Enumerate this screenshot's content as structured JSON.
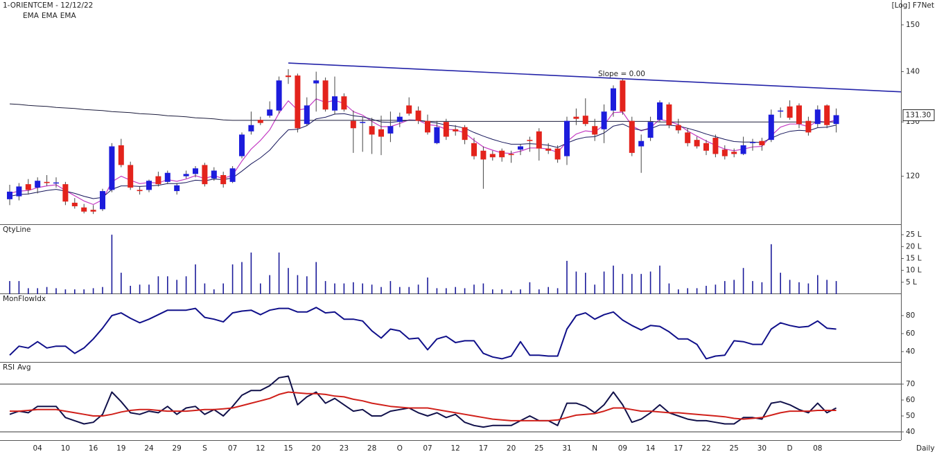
{
  "chart_data": [
    {
      "type": "candlestick",
      "title": "1-ORIENTCEM - 12/12/22",
      "scale_label": "[Log] F7Net",
      "log_scale": true,
      "ylim": [
        111.8,
        155.6
      ],
      "yticks": [
        120,
        130,
        140,
        150
      ],
      "up_color": "#1c1cdc",
      "down_color": "#e3231c",
      "open": [
        116.0,
        116.5,
        118.6,
        118.0,
        119.0,
        118.8,
        118.6,
        115.4,
        114.6,
        114.2,
        114.3,
        117.6,
        125.6,
        122.0,
        117.6,
        117.6,
        120.0,
        119.0,
        117.4,
        120.0,
        120.4,
        122.0,
        119.6,
        120.2,
        119.0,
        123.6,
        128.2,
        130.4,
        131.2,
        132.2,
        139.2,
        139.2,
        129.6,
        137.6,
        138.2,
        132.2,
        135.0,
        130.2,
        129.8,
        129.2,
        128.6,
        127.8,
        130.0,
        133.2,
        132.2,
        130.2,
        126.0,
        130.0,
        128.6,
        129.0,
        126.0,
        124.6,
        124.0,
        124.6,
        124.0,
        124.8,
        126.6,
        128.2,
        125.0,
        125.0,
        123.6,
        131.0,
        131.2,
        129.2,
        128.6,
        132.2,
        138.2,
        130.2,
        125.4,
        127.0,
        130.4,
        133.4,
        129.4,
        128.0,
        126.6,
        126.0,
        127.0,
        124.8,
        124.4,
        124.0,
        126.2,
        126.4,
        126.6,
        132.0,
        133.0,
        133.2,
        130.2,
        129.6,
        133.2,
        129.6
      ],
      "high": [
        118.5,
        118.8,
        119.5,
        119.8,
        120.2,
        119.8,
        119.0,
        116.2,
        115.2,
        115.0,
        117.8,
        126.0,
        126.8,
        122.6,
        118.2,
        119.4,
        120.8,
        121.0,
        118.8,
        121.0,
        121.8,
        122.4,
        121.6,
        120.8,
        121.8,
        128.0,
        132.0,
        131.0,
        134.0,
        139.0,
        140.5,
        139.6,
        134.8,
        140.0,
        138.8,
        139.0,
        135.6,
        132.2,
        131.0,
        130.8,
        131.2,
        132.0,
        131.8,
        134.8,
        133.0,
        131.4,
        130.2,
        130.6,
        129.4,
        129.4,
        127.0,
        125.4,
        124.6,
        125.0,
        124.6,
        125.8,
        127.2,
        128.8,
        126.0,
        125.6,
        131.0,
        132.6,
        134.6,
        130.6,
        133.4,
        137.2,
        138.6,
        131.0,
        127.6,
        131.0,
        134.2,
        133.8,
        130.6,
        128.8,
        127.2,
        126.6,
        127.6,
        125.6,
        125.0,
        127.2,
        126.8,
        127.0,
        132.4,
        132.8,
        134.2,
        133.6,
        131.0,
        133.2,
        133.4,
        132.6
      ],
      "low": [
        115.0,
        115.8,
        116.8,
        117.0,
        118.3,
        118.0,
        115.0,
        114.4,
        113.6,
        113.5,
        114.0,
        117.2,
        121.6,
        117.6,
        116.8,
        117.2,
        118.2,
        118.6,
        116.8,
        119.6,
        119.8,
        118.2,
        119.2,
        118.0,
        118.8,
        123.2,
        127.6,
        129.4,
        130.8,
        131.6,
        137.5,
        128.0,
        129.2,
        132.0,
        132.0,
        131.4,
        132.0,
        124.2,
        124.4,
        124.0,
        123.8,
        126.2,
        129.0,
        131.2,
        129.6,
        127.6,
        125.8,
        126.6,
        127.4,
        125.8,
        123.0,
        117.8,
        122.8,
        122.6,
        122.4,
        123.8,
        124.4,
        122.8,
        124.0,
        122.4,
        122.0,
        129.4,
        129.2,
        126.4,
        126.0,
        131.0,
        131.4,
        123.6,
        120.6,
        126.4,
        130.0,
        128.8,
        127.8,
        125.4,
        125.0,
        123.8,
        123.4,
        123.0,
        123.4,
        123.8,
        124.6,
        124.6,
        126.2,
        130.8,
        130.4,
        128.8,
        127.4,
        129.0,
        128.8,
        128.0
      ],
      "close": [
        117.3,
        118.2,
        117.6,
        119.2,
        118.8,
        118.9,
        115.6,
        114.8,
        113.9,
        113.9,
        117.4,
        125.4,
        122.0,
        118.0,
        117.4,
        119.2,
        118.6,
        120.6,
        118.4,
        120.4,
        121.4,
        118.6,
        121.0,
        118.6,
        121.4,
        127.6,
        129.4,
        129.8,
        132.4,
        138.2,
        138.9,
        128.8,
        133.2,
        138.2,
        132.4,
        135.0,
        132.4,
        128.8,
        130.0,
        127.6,
        127.2,
        129.2,
        131.0,
        131.6,
        130.2,
        128.0,
        129.0,
        127.2,
        128.2,
        126.6,
        123.6,
        123.0,
        123.4,
        123.4,
        123.8,
        125.4,
        126.4,
        125.0,
        124.6,
        123.0,
        130.2,
        130.6,
        129.6,
        127.6,
        132.0,
        136.6,
        132.0,
        124.2,
        126.4,
        130.0,
        133.8,
        129.4,
        128.4,
        126.0,
        125.4,
        124.6,
        124.0,
        123.6,
        124.0,
        125.6,
        126.2,
        125.6,
        131.4,
        132.2,
        130.8,
        129.6,
        128.0,
        132.4,
        129.4,
        131.3
      ],
      "last_label": "131.30",
      "series": [
        {
          "name": "EMA",
          "color": "#c43bc4",
          "values": [
            117.0,
            117.4,
            117.5,
            118.0,
            118.3,
            118.5,
            117.5,
            116.6,
            115.7,
            115.1,
            115.9,
            119.0,
            120.0,
            119.3,
            118.7,
            118.9,
            118.8,
            119.4,
            119.1,
            119.5,
            120.1,
            119.6,
            120.1,
            119.6,
            120.2,
            122.7,
            124.9,
            126.5,
            128.5,
            131.7,
            134.1,
            132.3,
            132.6,
            134.5,
            133.8,
            134.2,
            133.6,
            132.0,
            131.3,
            130.1,
            129.1,
            129.1,
            129.7,
            130.4,
            130.3,
            129.5,
            129.3,
            128.6,
            128.5,
            127.9,
            126.5,
            125.3,
            124.7,
            124.2,
            124.1,
            124.5,
            125.1,
            125.1,
            124.9,
            124.3,
            126.3,
            127.7,
            128.3,
            128.1,
            129.4,
            131.8,
            131.9,
            129.3,
            128.3,
            128.9,
            130.5,
            130.1,
            129.5,
            128.3,
            127.3,
            126.4,
            125.6,
            124.9,
            124.6,
            124.9,
            125.3,
            125.4,
            127.4,
            129.0,
            129.6,
            129.6,
            129.1,
            130.2,
            129.9,
            130.4
          ]
        },
        {
          "name": "EMA",
          "color": "#14145a",
          "values": [
            116.5,
            116.8,
            116.9,
            117.2,
            117.5,
            117.7,
            117.4,
            117.0,
            116.5,
            116.1,
            116.3,
            117.7,
            118.3,
            118.3,
            118.2,
            118.3,
            118.4,
            118.7,
            118.7,
            118.9,
            119.3,
            119.2,
            119.5,
            119.4,
            119.7,
            120.9,
            122.2,
            123.3,
            124.7,
            126.7,
            128.5,
            128.6,
            129.3,
            130.6,
            130.9,
            131.5,
            131.6,
            131.2,
            131.0,
            130.5,
            130.0,
            129.9,
            130.1,
            130.3,
            130.3,
            130.0,
            129.8,
            129.4,
            129.2,
            128.8,
            128.0,
            127.3,
            126.7,
            126.2,
            125.8,
            125.8,
            125.9,
            125.8,
            125.6,
            125.2,
            126.0,
            126.7,
            127.1,
            127.2,
            127.9,
            129.2,
            129.6,
            128.8,
            128.4,
            128.7,
            129.4,
            129.4,
            129.2,
            128.8,
            128.3,
            127.7,
            127.2,
            126.7,
            126.3,
            126.2,
            126.2,
            126.1,
            126.9,
            127.7,
            128.2,
            128.4,
            128.3,
            128.9,
            129.0,
            129.4
          ]
        },
        {
          "name": "EMA",
          "color": "#1a1a3a",
          "values": [
            133.5,
            133.4,
            133.2,
            133.1,
            133.0,
            132.8,
            132.7,
            132.6,
            132.4,
            132.3,
            132.2,
            132.0,
            131.9,
            131.8,
            131.6,
            131.5,
            131.4,
            131.2,
            131.1,
            131.0,
            130.8,
            130.7,
            130.6,
            130.4,
            130.3,
            130.3,
            130.3,
            130.3,
            130.3,
            130.3,
            130.3,
            130.3,
            130.3,
            130.3,
            130.3,
            130.3,
            130.3,
            130.3,
            130.3,
            130.3,
            130.3,
            130.3,
            130.3,
            130.3,
            130.3,
            130.1,
            130.1,
            130.1,
            130.1,
            130.1,
            130.1,
            130.1,
            130.1,
            130.1,
            130.1,
            130.1,
            130.1,
            130.1,
            130.1,
            130.1,
            130.1,
            130.1,
            130.1,
            130.1,
            130.1,
            130.1,
            130.1,
            130.1,
            130.1,
            130.1,
            130.0,
            130.0,
            130.0,
            130.0,
            130.0,
            130.0,
            130.0,
            130.0,
            130.0,
            130.0,
            130.0,
            130.0,
            130.0,
            130.0,
            130.0,
            130.0,
            130.0,
            130.0,
            130.0,
            130.0
          ]
        }
      ],
      "trendline": {
        "label": "Slope = 0.00",
        "color": "#2323a8",
        "values": [
          141.8,
          135.9
        ]
      }
    },
    {
      "type": "bar",
      "title": "QtyLine",
      "color": "#1a1a9a",
      "ylim": [
        0,
        29.4
      ],
      "yticks": [
        {
          "value": 5,
          "label": "5 L"
        },
        {
          "value": 10,
          "label": "10 L"
        },
        {
          "value": 15,
          "label": "15 L"
        },
        {
          "value": 20,
          "label": "20 L"
        },
        {
          "value": 25,
          "label": "25 L"
        }
      ],
      "values": [
        5.5,
        5.5,
        2.5,
        2.5,
        3,
        2.5,
        2,
        2,
        2,
        2.5,
        3,
        25,
        9,
        3.5,
        4,
        4,
        7.5,
        7.5,
        6,
        7.5,
        12.5,
        4.5,
        2,
        4.5,
        12.5,
        13.5,
        17.5,
        4.5,
        8,
        17.5,
        11,
        8,
        7.5,
        13.5,
        5.5,
        4.5,
        4.5,
        5,
        4.5,
        4,
        3,
        5.5,
        3,
        3,
        4,
        7,
        2.5,
        2.5,
        3,
        2.5,
        4,
        4.5,
        2,
        2,
        1.5,
        2,
        5,
        2,
        3,
        2.5,
        14,
        9.5,
        9,
        4,
        9.5,
        12,
        8.5,
        8.5,
        8.5,
        9.5,
        12,
        4.5,
        2,
        2.5,
        2.5,
        3.5,
        4,
        5.5,
        6,
        11,
        5.5,
        5,
        21,
        9,
        6,
        5,
        4.5,
        8,
        6,
        5.5
      ]
    },
    {
      "type": "line",
      "title": "MonFlowIdx",
      "color": "#10108a",
      "ylim": [
        28.5,
        104.6
      ],
      "yticks": [
        40,
        60,
        80
      ],
      "values": [
        36,
        46,
        44,
        51,
        44,
        46,
        46,
        38,
        44,
        54,
        66,
        80,
        83,
        77,
        72,
        76,
        81,
        86,
        86,
        86,
        88,
        78,
        76,
        73,
        83,
        85,
        86,
        81,
        86,
        88,
        88,
        84,
        84,
        89,
        83,
        84,
        76,
        76,
        74,
        63,
        55,
        65,
        63,
        54,
        55,
        42,
        54,
        57,
        50,
        52,
        52,
        38,
        34,
        32,
        35,
        51,
        36,
        36,
        35,
        35,
        65,
        80,
        83,
        76,
        81,
        84,
        75,
        69,
        64,
        69,
        68,
        62,
        54,
        54,
        48,
        32,
        35,
        36,
        52,
        51,
        48,
        48,
        65,
        72,
        69,
        67,
        68,
        74,
        66,
        65
      ]
    },
    {
      "type": "line",
      "ylim": [
        34.8,
        83.9
      ],
      "yticks": [
        40,
        50,
        60,
        70
      ],
      "hlines": [
        40,
        70
      ],
      "xlabel": "Daily",
      "categories": [
        null,
        null,
        null,
        "04",
        null,
        null,
        "10",
        null,
        null,
        "16",
        null,
        null,
        "19",
        null,
        null,
        "24",
        null,
        null,
        "29",
        null,
        null,
        "S",
        null,
        null,
        "07",
        null,
        null,
        "12",
        null,
        null,
        "15",
        null,
        null,
        "20",
        null,
        null,
        "23",
        null,
        null,
        "28",
        null,
        null,
        "O",
        null,
        null,
        "07",
        null,
        null,
        "12",
        null,
        null,
        "17",
        null,
        null,
        "20",
        null,
        null,
        "25",
        null,
        null,
        "31",
        null,
        null,
        "N",
        null,
        null,
        "09",
        null,
        null,
        "14",
        null,
        null,
        "17",
        null,
        null,
        "22",
        null,
        null,
        "25",
        null,
        null,
        "30",
        null,
        null,
        "D",
        null,
        null,
        "08",
        null,
        null
      ],
      "series": [
        {
          "name": "RSI",
          "color": "#10104a",
          "values": [
            51,
            53,
            52,
            56,
            56,
            56,
            49,
            47,
            45,
            46,
            51,
            65,
            59,
            52,
            51,
            53,
            52,
            56,
            51,
            55,
            56,
            51,
            54,
            50,
            56,
            63,
            66,
            66,
            69,
            74,
            75,
            57,
            62,
            65,
            58,
            61,
            57,
            53,
            54,
            50,
            50,
            53,
            54,
            55,
            52,
            50,
            52,
            49,
            51,
            46,
            44,
            43,
            44,
            44,
            44,
            47,
            50,
            47,
            47,
            44,
            58,
            58,
            56,
            52,
            57,
            65,
            57,
            46,
            48,
            52,
            57,
            52,
            50,
            48,
            47,
            47,
            46,
            45,
            45,
            49,
            49,
            48,
            58,
            59,
            57,
            54,
            52,
            58,
            52,
            55
          ]
        },
        {
          "name": "Avg",
          "color": "#d0201a",
          "values": [
            53,
            53,
            53.5,
            54,
            54,
            54,
            53,
            52,
            51,
            50,
            50,
            51,
            52.5,
            53.5,
            54,
            54,
            53.5,
            53,
            53,
            53,
            53.5,
            54,
            54,
            54.5,
            55,
            56.5,
            58,
            59.5,
            61,
            63.5,
            65,
            64.5,
            64,
            64,
            63.5,
            62.5,
            62,
            60.5,
            59.5,
            58,
            57,
            56,
            55.5,
            55,
            55,
            55,
            54,
            53,
            52,
            51,
            50,
            49,
            48,
            47.5,
            47,
            47,
            47,
            47,
            47,
            47.5,
            49,
            50.5,
            51,
            51.5,
            53,
            55,
            55,
            54,
            53,
            53,
            52.5,
            52,
            52,
            51.5,
            51,
            50.5,
            50,
            49.5,
            48.5,
            48,
            48.5,
            49,
            50.5,
            52,
            53,
            53,
            53,
            53.5,
            53.5,
            53.5
          ]
        }
      ]
    }
  ]
}
